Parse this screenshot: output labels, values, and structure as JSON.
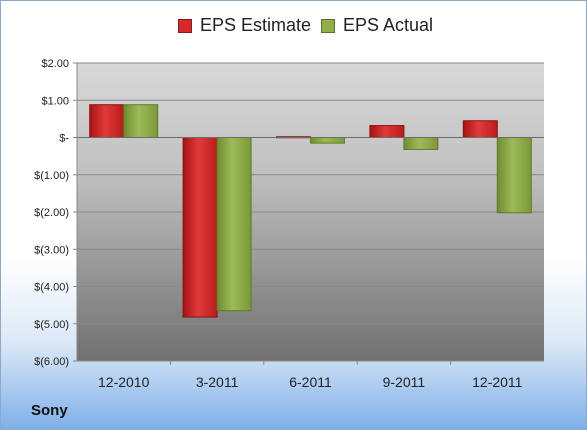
{
  "company": "Sony",
  "colors": {
    "estimate": "#d42a2a",
    "actual": "#8fb048"
  },
  "chart_data": {
    "type": "bar",
    "categories": [
      "12-2010",
      "3-2011",
      "6-2011",
      "9-2011",
      "12-2011"
    ],
    "series": [
      {
        "name": "EPS Estimate",
        "values": [
          0.88,
          -4.82,
          0.02,
          0.32,
          0.45
        ]
      },
      {
        "name": "EPS Actual",
        "values": [
          0.88,
          -4.65,
          -0.15,
          -0.32,
          -2.02
        ]
      }
    ],
    "ylim": [
      -6,
      2
    ],
    "yticks": [
      2,
      1,
      0,
      -1,
      -2,
      -3,
      -4,
      -5,
      -6
    ],
    "ytick_labels": [
      "$2.00",
      "$1.00",
      "$-",
      "$(1.00)",
      "$(2.00)",
      "$(3.00)",
      "$(4.00)",
      "$(5.00)",
      "$(6.00)"
    ],
    "grid": true,
    "legend": "top"
  }
}
